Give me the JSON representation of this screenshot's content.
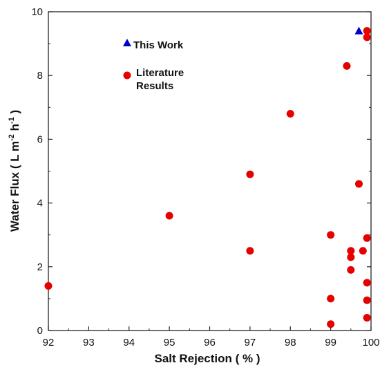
{
  "chart_data": {
    "type": "scatter",
    "xlabel": "Salt Rejection ( % )",
    "ylabel_parts": [
      "Water Flux ( L m",
      "-2",
      " h",
      "-1",
      " )"
    ],
    "xlim": [
      92,
      100
    ],
    "ylim": [
      0,
      10
    ],
    "xticks": [
      92,
      93,
      94,
      95,
      96,
      97,
      98,
      99,
      100
    ],
    "yticks": [
      0,
      2,
      4,
      6,
      8,
      10
    ],
    "grid": false,
    "legend_position": "top-left",
    "series": [
      {
        "name": "This Work",
        "marker": "triangle",
        "color": "#0000cc",
        "points": [
          [
            99.7,
            9.4
          ]
        ]
      },
      {
        "name_lines": [
          "Literature",
          "Results"
        ],
        "marker": "circle",
        "color": "#e60000",
        "points": [
          [
            92.0,
            1.4
          ],
          [
            95.0,
            3.6
          ],
          [
            97.0,
            4.9
          ],
          [
            97.0,
            2.5
          ],
          [
            98.0,
            6.8
          ],
          [
            99.0,
            3.0
          ],
          [
            99.0,
            1.0
          ],
          [
            99.0,
            0.2
          ],
          [
            99.4,
            8.3
          ],
          [
            99.5,
            2.5
          ],
          [
            99.5,
            2.3
          ],
          [
            99.5,
            1.9
          ],
          [
            99.7,
            4.6
          ],
          [
            99.8,
            2.5
          ],
          [
            99.9,
            9.4
          ],
          [
            99.9,
            9.2
          ],
          [
            99.9,
            2.9
          ],
          [
            99.9,
            1.5
          ],
          [
            99.9,
            0.95
          ],
          [
            99.9,
            0.4
          ]
        ]
      }
    ]
  }
}
